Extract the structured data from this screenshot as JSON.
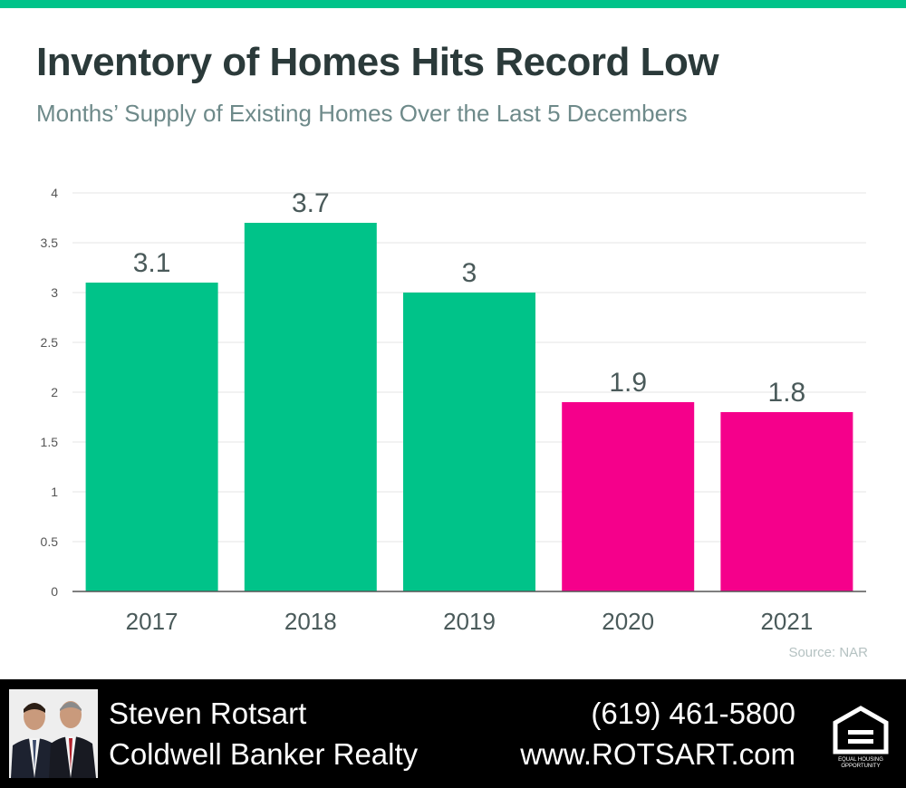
{
  "title": "Inventory of Homes Hits Record Low",
  "subtitle": "Months’ Supply of Existing Homes Over the Last 5 Decembers",
  "source": "Source: NAR",
  "colors": {
    "accent": "#00c389",
    "highlight": "#f5008b",
    "grid": "#e6e6e6",
    "axis": "#555555",
    "label": "#4a5a5a"
  },
  "chart_data": {
    "type": "bar",
    "categories": [
      "2017",
      "2018",
      "2019",
      "2020",
      "2021"
    ],
    "values": [
      3.1,
      3.7,
      3,
      1.9,
      1.8
    ],
    "bar_colors": [
      "#00c389",
      "#00c389",
      "#00c389",
      "#f5008b",
      "#f5008b"
    ],
    "data_labels": [
      "3.1",
      "3.7",
      "3",
      "1.9",
      "1.8"
    ],
    "ylim": [
      0,
      4
    ],
    "yticks": [
      0,
      0.5,
      1,
      1.5,
      2,
      2.5,
      3,
      3.5,
      4
    ],
    "ytick_labels": [
      "0",
      "0.5",
      "1",
      "1.5",
      "2",
      "2.5",
      "3",
      "3.5",
      "4"
    ],
    "grid": true,
    "xlabel": "",
    "ylabel": ""
  },
  "footer": {
    "agent_name": "Steven Rotsart",
    "brokerage": "Coldwell Banker Realty",
    "phone": "(619) 461-5800",
    "website": "www.ROTSART.com",
    "logo_text_1": "EQUAL HOUSING",
    "logo_text_2": "OPPORTUNITY",
    "logo_icon": "equal-housing-icon",
    "photo_icon": "agent-photo"
  }
}
